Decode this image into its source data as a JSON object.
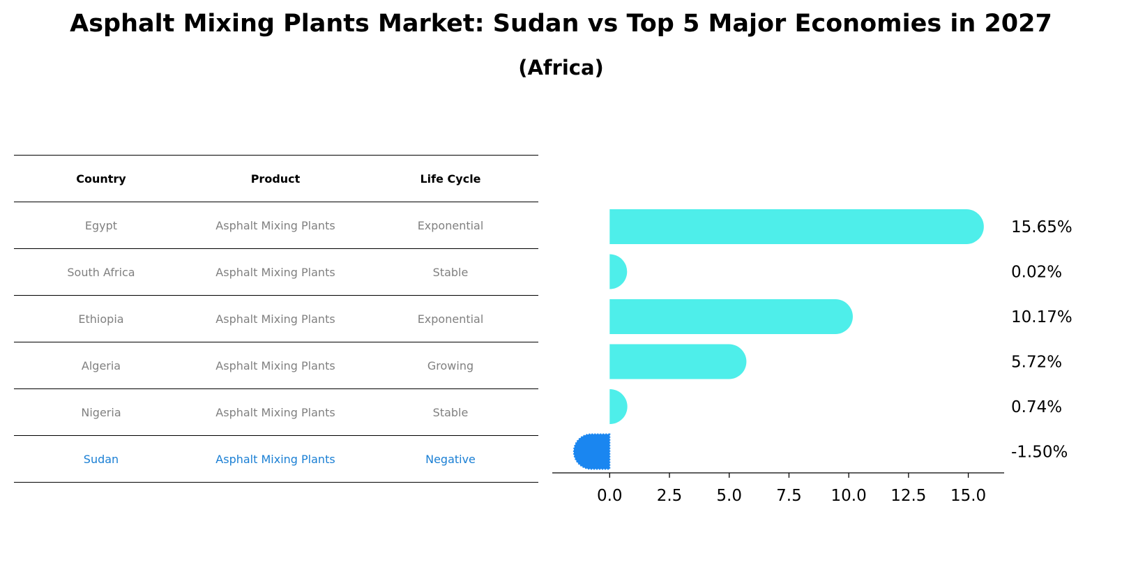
{
  "title": "Asphalt Mixing Plants Market: Sudan vs Top 5 Major Economies in 2027",
  "subtitle": "(Africa)",
  "table": {
    "headers": [
      "Country",
      "Product",
      "Life Cycle"
    ],
    "rows": [
      {
        "country": "Egypt",
        "product": "Asphalt Mixing Plants",
        "life_cycle": "Exponential"
      },
      {
        "country": "South Africa",
        "product": "Asphalt Mixing Plants",
        "life_cycle": "Stable"
      },
      {
        "country": "Ethiopia",
        "product": "Asphalt Mixing Plants",
        "life_cycle": "Exponential"
      },
      {
        "country": "Algeria",
        "product": "Asphalt Mixing Plants",
        "life_cycle": "Growing"
      },
      {
        "country": "Nigeria",
        "product": "Asphalt Mixing Plants",
        "life_cycle": "Stable"
      },
      {
        "country": "Sudan",
        "product": "Asphalt Mixing Plants",
        "life_cycle": "Negative"
      }
    ]
  },
  "chart_data": {
    "type": "bar",
    "orientation": "horizontal",
    "categories": [
      "Egypt",
      "South Africa",
      "Ethiopia",
      "Algeria",
      "Nigeria",
      "Sudan"
    ],
    "values": [
      15.65,
      0.02,
      10.17,
      5.72,
      0.74,
      -1.5
    ],
    "value_labels": [
      "15.65%",
      "0.02%",
      "10.17%",
      "5.72%",
      "0.74%",
      "-1.50%"
    ],
    "xlim": [
      -2.4,
      16.5
    ],
    "xticks": [
      0.0,
      2.5,
      5.0,
      7.5,
      10.0,
      12.5,
      15.0
    ],
    "xtick_labels": [
      "0.0",
      "2.5",
      "5.0",
      "7.5",
      "10.0",
      "12.5",
      "15.0"
    ],
    "colors": {
      "default": "#4eeeea",
      "highlight": "#1a86f0"
    },
    "highlight_category": "Sudan"
  }
}
